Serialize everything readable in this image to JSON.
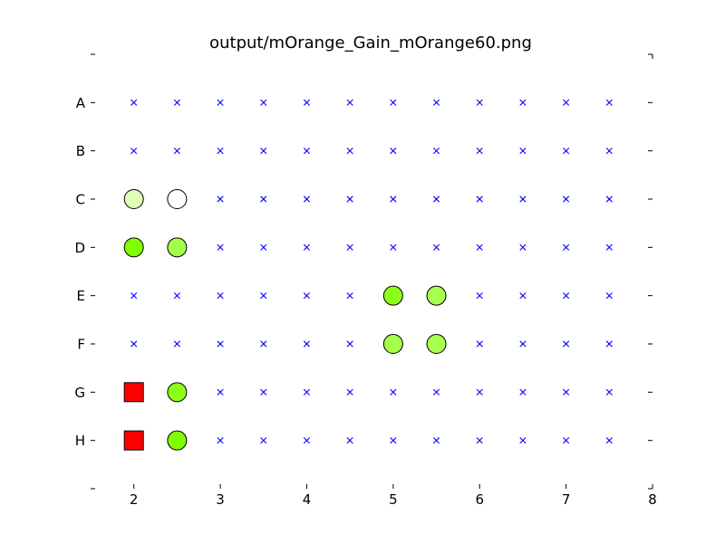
{
  "chart_data": {
    "type": "scatter",
    "title": "output/mOrange_Gain_mOrange60.png",
    "xlim": [
      1.5,
      8
    ],
    "xticks": [
      2,
      3,
      4,
      5,
      6,
      7,
      8
    ],
    "xtick_labels": [
      "2",
      "3",
      "4",
      "5",
      "6",
      "7",
      "8"
    ],
    "rows": [
      "A",
      "B",
      "C",
      "D",
      "E",
      "F",
      "G",
      "H"
    ],
    "grid": false,
    "empty_marker": {
      "shape": "x",
      "color": "#0000ff"
    },
    "empty_columns": [
      2,
      2.5,
      3,
      3.5,
      4,
      4.5,
      5,
      5.5,
      6,
      6.5,
      7,
      7.5
    ],
    "points": [
      {
        "row": "C",
        "x": 2,
        "shape": "circle",
        "color": "#deffb8"
      },
      {
        "row": "C",
        "x": 2.5,
        "shape": "circle",
        "color": "#ffffff"
      },
      {
        "row": "D",
        "x": 2,
        "shape": "circle",
        "color": "#7fff00"
      },
      {
        "row": "D",
        "x": 2.5,
        "shape": "circle",
        "color": "#a3ff4a"
      },
      {
        "row": "E",
        "x": 5,
        "shape": "circle",
        "color": "#8cff1a"
      },
      {
        "row": "E",
        "x": 5.5,
        "shape": "circle",
        "color": "#a8ff50"
      },
      {
        "row": "F",
        "x": 5,
        "shape": "circle",
        "color": "#a3ff4a"
      },
      {
        "row": "F",
        "x": 5.5,
        "shape": "circle",
        "color": "#a8ff50"
      },
      {
        "row": "G",
        "x": 2,
        "shape": "square",
        "color": "#ff0000"
      },
      {
        "row": "G",
        "x": 2.5,
        "shape": "circle",
        "color": "#8cff1a"
      },
      {
        "row": "H",
        "x": 2,
        "shape": "square",
        "color": "#ff0000"
      },
      {
        "row": "H",
        "x": 2.5,
        "shape": "circle",
        "color": "#7fff00"
      }
    ]
  }
}
